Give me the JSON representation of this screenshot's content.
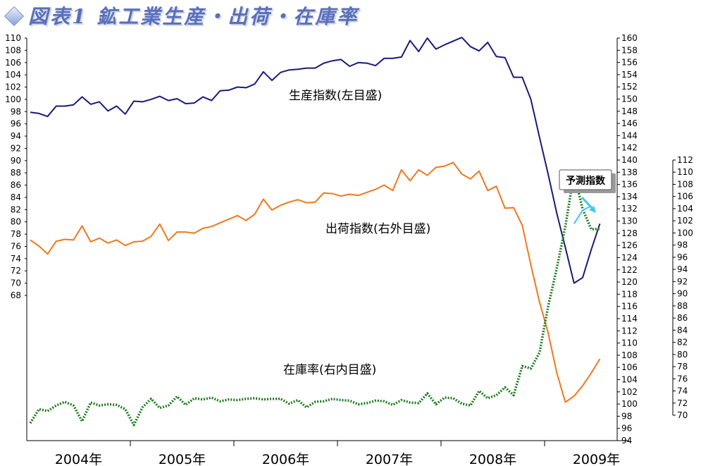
{
  "title": "図表1 鉱工業生産・出荷・在庫率",
  "colors": {
    "production": "#1a1a7a",
    "shipments": "#f07820",
    "inventory": "#1e7d1e",
    "forecast": "#40c8f0",
    "title": "#5a6fb8"
  },
  "chart_data": {
    "type": "line",
    "title": "図表1 鉱工業生産・出荷・在庫率",
    "x_categories": [
      "2004年",
      "2005年",
      "2006年",
      "2007年",
      "2008年",
      "2009年"
    ],
    "axes": {
      "left": {
        "ylim": [
          68,
          110
        ],
        "ticks": [
          68,
          70,
          72,
          74,
          76,
          78,
          80,
          82,
          84,
          86,
          88,
          90,
          92,
          94,
          96,
          98,
          100,
          102,
          104,
          106,
          108,
          110
        ]
      },
      "right_outer": {
        "ylim": [
          94,
          160
        ],
        "ticks": [
          94,
          96,
          98,
          100,
          102,
          104,
          106,
          108,
          110,
          112,
          114,
          116,
          118,
          120,
          122,
          124,
          126,
          128,
          130,
          132,
          134,
          136,
          138,
          140,
          142,
          144,
          146,
          148,
          150,
          152,
          154,
          156,
          158,
          160
        ]
      },
      "right_inner": {
        "ylim": [
          70,
          112
        ],
        "ticks": [
          70,
          72,
          74,
          76,
          78,
          80,
          82,
          84,
          86,
          88,
          90,
          92,
          94,
          96,
          98,
          100,
          102,
          104,
          106,
          108,
          110,
          112
        ]
      }
    },
    "series": [
      {
        "name": "生産指数(左目盛)",
        "axis": "left",
        "start": "2004-01",
        "values": [
          97.9,
          97.7,
          97.2,
          98.9,
          98.9,
          99.1,
          100.4,
          99.2,
          99.6,
          98.1,
          98.9,
          97.6,
          99.7,
          99.6,
          100.0,
          100.5,
          99.8,
          100.1,
          99.3,
          99.4,
          100.4,
          99.8,
          101.4,
          101.5,
          102.0,
          101.9,
          102.5,
          104.5,
          103.1,
          104.4,
          104.8,
          104.9,
          105.1,
          105.1,
          105.9,
          106.3,
          106.5,
          105.4,
          106.0,
          105.9,
          105.5,
          106.7,
          106.7,
          106.9,
          109.6,
          107.8,
          110.0,
          108.2,
          108.9,
          109.5,
          110.1,
          108.6,
          107.9,
          109.3,
          107.0,
          106.8,
          103.6,
          103.6,
          100.0,
          93.8,
          87.8,
          81.4,
          75.8,
          70.0,
          70.9,
          75.5,
          79.7
        ]
      },
      {
        "name": "出荷指数(右外目盛)",
        "axis": "right_outer",
        "start": "2004-01",
        "values": [
          126.9,
          125.9,
          124.6,
          126.7,
          127.0,
          126.9,
          129.2,
          126.6,
          127.2,
          126.4,
          126.9,
          126.0,
          126.6,
          126.7,
          127.5,
          129.5,
          126.8,
          128.2,
          128.2,
          128.0,
          128.8,
          129.1,
          129.7,
          130.3,
          130.9,
          130.1,
          131.1,
          133.6,
          131.8,
          132.6,
          133.1,
          133.5,
          133.0,
          133.1,
          134.6,
          134.5,
          134.1,
          134.4,
          134.2,
          134.7,
          135.2,
          135.9,
          135.0,
          138.4,
          136.6,
          138.4,
          137.5,
          138.8,
          139.0,
          139.6,
          137.7,
          136.9,
          138.2,
          135.0,
          135.7,
          132.1,
          132.2,
          129.3,
          122.8,
          116.7,
          111.7,
          105.1,
          100.3,
          101.3,
          103.0,
          105.1,
          107.4
        ]
      },
      {
        "name": "在庫率(右内目盛)",
        "axis": "right_inner",
        "start": "2004-01",
        "values": [
          68.7,
          71.0,
          70.7,
          71.6,
          72.2,
          71.6,
          69.0,
          72.1,
          71.6,
          71.8,
          71.7,
          71.0,
          68.4,
          71.3,
          72.7,
          71.2,
          71.6,
          73.1,
          71.7,
          72.8,
          72.6,
          72.9,
          72.3,
          72.6,
          72.5,
          72.7,
          72.8,
          72.6,
          72.7,
          72.7,
          71.9,
          72.5,
          71.3,
          72.2,
          72.3,
          72.7,
          72.5,
          72.4,
          71.8,
          72.0,
          72.4,
          72.3,
          71.7,
          72.5,
          72.1,
          72.0,
          73.6,
          71.8,
          72.9,
          72.8,
          71.9,
          71.6,
          74.0,
          72.8,
          73.3,
          74.6,
          73.3,
          78.1,
          77.7,
          80.3,
          87.9,
          94.2,
          101.1,
          109.9,
          103.9,
          100.6,
          100.7
        ]
      },
      {
        "name": "予測指数",
        "axis": "left",
        "start": "2009-04",
        "values": [
          79.7,
          81.9,
          82.6
        ]
      }
    ],
    "annotations": [
      "生産指数(左目盛)",
      "出荷指数(右外目盛)",
      "在庫率(右内目盛)",
      "予測指数"
    ],
    "grid": false,
    "legend": "none"
  }
}
